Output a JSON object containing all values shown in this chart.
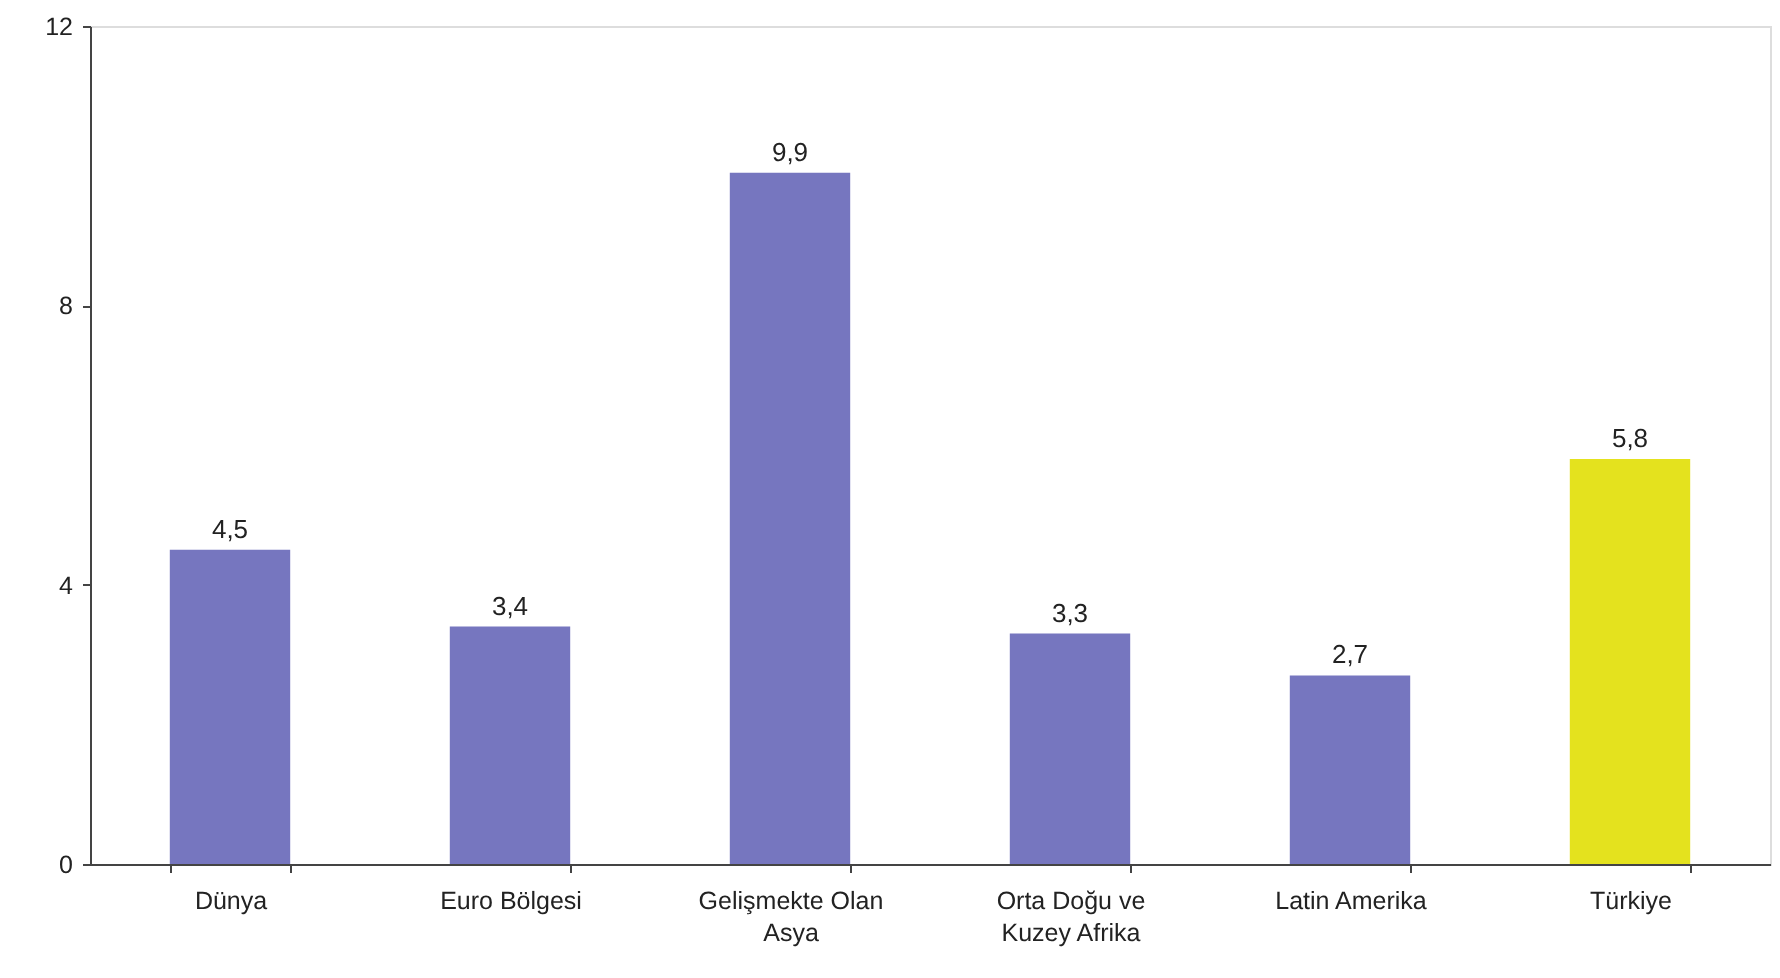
{
  "chart_data": {
    "type": "bar",
    "categories": [
      "Dünya",
      "Euro Bölgesi",
      "Gelişmekte Olan Asya",
      "Orta Doğu ve Kuzey Afrika",
      "Latin Amerika",
      "Türkiye"
    ],
    "values": [
      4.5,
      3.4,
      9.9,
      3.3,
      2.7,
      5.8
    ],
    "colors": [
      "#7676bf",
      "#7676bf",
      "#7676bf",
      "#7676bf",
      "#7676bf",
      "#e4e21e"
    ],
    "value_labels": [
      "4,5",
      "3,4",
      "9,9",
      "3,3",
      "2,7",
      "5,8"
    ],
    "ylim": [
      0,
      12
    ],
    "yticks": [
      0,
      4,
      8,
      12
    ]
  }
}
